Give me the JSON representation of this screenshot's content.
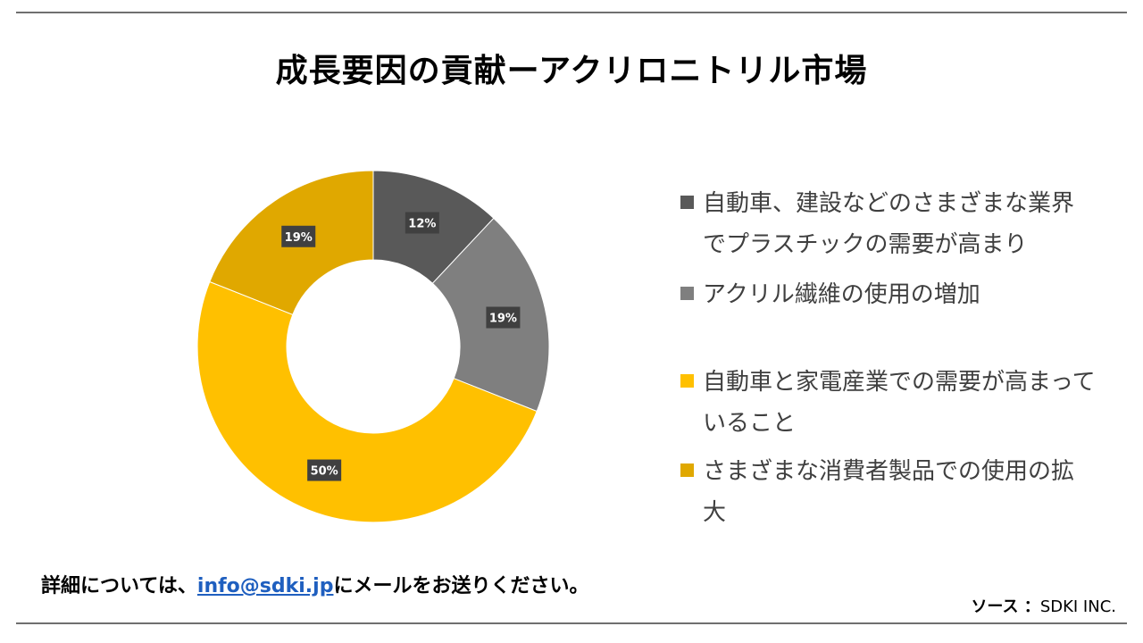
{
  "title": "成長要因の貢献ーアクリロニトリル市場",
  "footer": {
    "prefix": "詳細については、",
    "email": "info@sdki.jp",
    "suffix": "にメールをお送りください。"
  },
  "source": {
    "label": "ソース ：",
    "value": "SDKI INC."
  },
  "chart_data": {
    "type": "pie",
    "variant": "donut",
    "title": "成長要因の貢献ーアクリロニトリル市場",
    "legend_position": "right",
    "slices": [
      {
        "label": "自動車、建設などのさまざまな業界でプラスチックの需要が高まり",
        "value": 12,
        "value_label": "12%",
        "color": "#595959"
      },
      {
        "label": "アクリル繊維の使用の増加",
        "value": 19,
        "value_label": "19%",
        "color": "#7f7f7f"
      },
      {
        "label": "自動車と家電産業での需要が高まっていること",
        "value": 50,
        "value_label": "50%",
        "color": "#ffc000"
      },
      {
        "label": "さまざまな消費者製品での使用の拡大",
        "value": 19,
        "value_label": "19%",
        "color": "#e0a800"
      }
    ]
  }
}
